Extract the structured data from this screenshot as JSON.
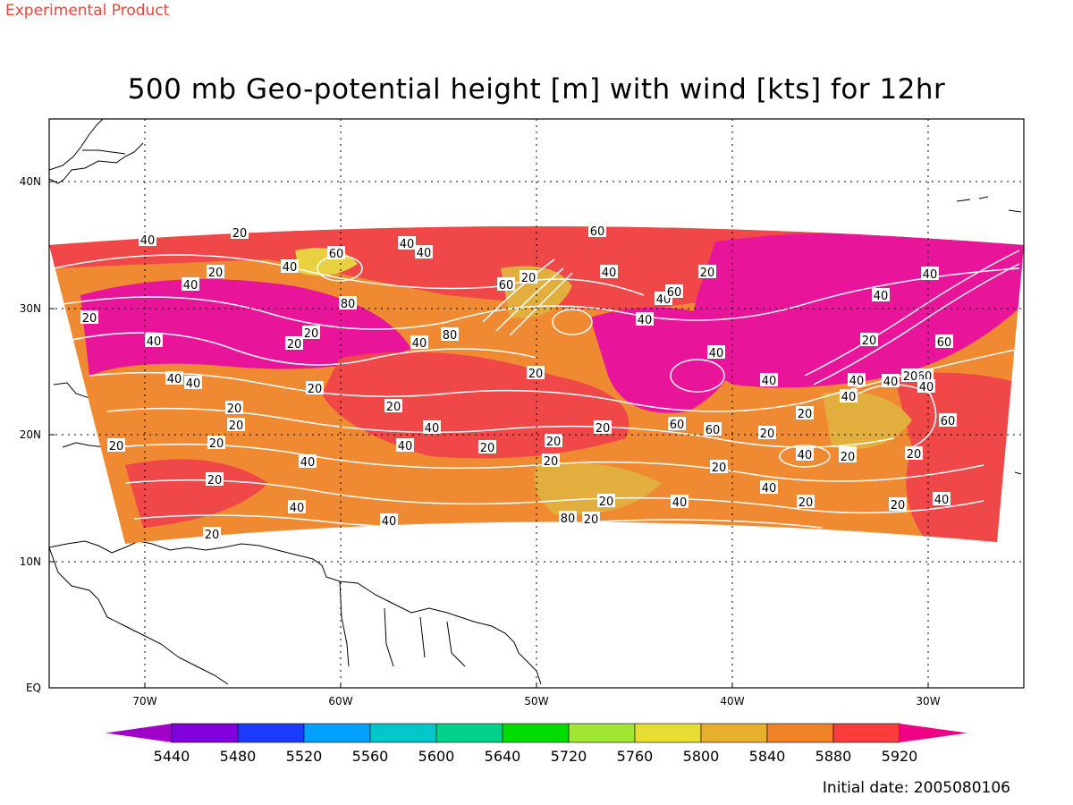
{
  "header": {
    "product_label": "Experimental Product",
    "title": "500 mb Geo-potential height [m] with wind [kts] for 12hr"
  },
  "axes": {
    "lat_labels": [
      "40N",
      "30N",
      "20N",
      "10N",
      "EQ"
    ],
    "lon_labels": [
      "70W",
      "60W",
      "50W",
      "40W",
      "30W"
    ]
  },
  "contour_labels": [
    "40",
    "20",
    "20",
    "40",
    "40",
    "60",
    "40",
    "20",
    "80",
    "60",
    "20",
    "40",
    "40",
    "20",
    "80",
    "40",
    "60",
    "40",
    "20",
    "40",
    "40",
    "60",
    "20",
    "40",
    "40",
    "20",
    "20",
    "20",
    "40",
    "20",
    "20",
    "20",
    "40",
    "60",
    "20",
    "40",
    "40",
    "60",
    "40",
    "20",
    "40",
    "20",
    "20",
    "20",
    "40",
    "20",
    "20",
    "40",
    "20",
    "20",
    "20",
    "20",
    "40",
    "20",
    "20",
    "40",
    "60",
    "40",
    "40",
    "60",
    "40",
    "20",
    "20",
    "40",
    "40",
    "20",
    "80",
    "40",
    "20",
    "60",
    "20",
    "20",
    "40"
  ],
  "colorbar": {
    "labels": [
      "5440",
      "5480",
      "5520",
      "5560",
      "5600",
      "5640",
      "5720",
      "5760",
      "5800",
      "5840",
      "5880",
      "5920"
    ],
    "colors": [
      "#a000c8",
      "#8200dc",
      "#1e3cff",
      "#00a0ff",
      "#00c8c8",
      "#00d28c",
      "#00dc00",
      "#a0e632",
      "#e6dc32",
      "#e6af2d",
      "#f08228",
      "#fa3c3c",
      "#f00082"
    ]
  },
  "palette": {
    "pink": "#e8149a",
    "red": "#f04848",
    "orange": "#ef8a32",
    "gold": "#e2ae3e",
    "yellow": "#e8d040",
    "contour": "#ffffff",
    "coast": "#000000",
    "product_label": "#e8453a"
  },
  "footer": {
    "initial_date": "Initial date: 2005080106"
  }
}
